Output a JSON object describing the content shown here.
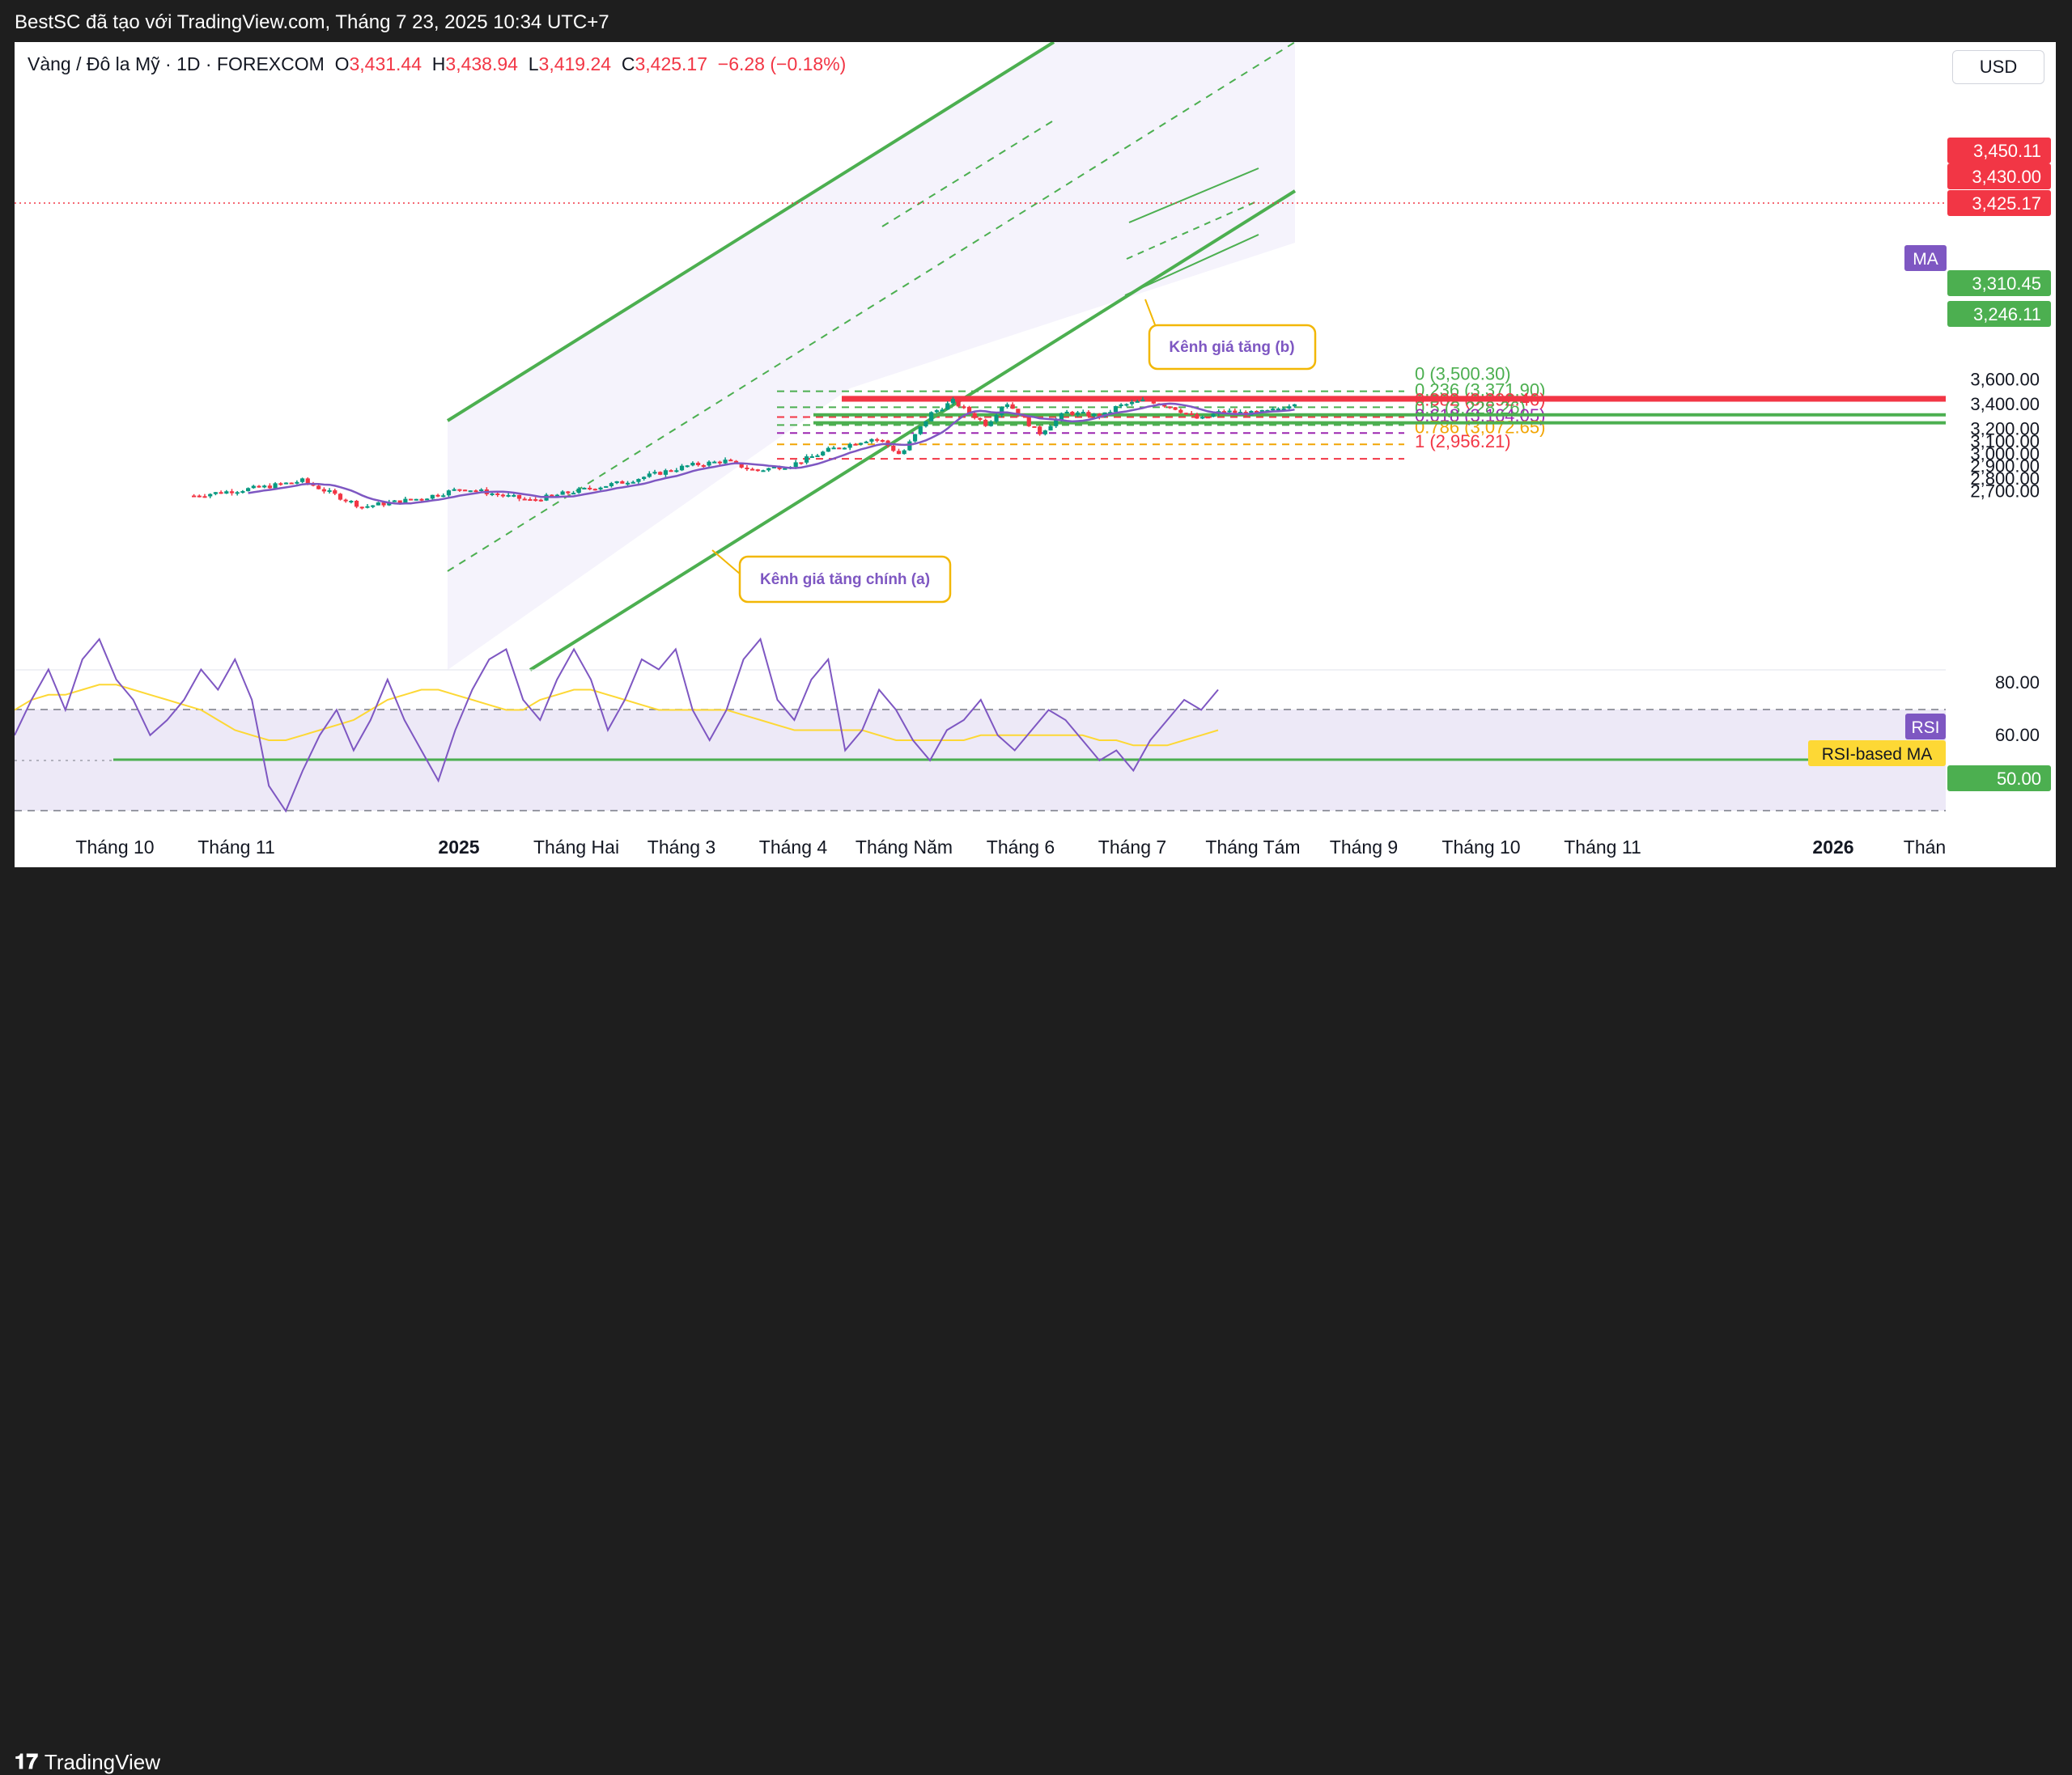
{
  "header": {
    "text": "BestSC đã tạo với TradingView.com, Tháng 7 23, 2025 10:34 UTC+7"
  },
  "footer": {
    "brand": "TradingView",
    "logo_icon": "tradingview-logo-icon"
  },
  "currency_button": "USD",
  "legend": {
    "symbol": "Vàng / Đô la Mỹ · 1D · FOREXCOM",
    "o_label": "O",
    "o_value": "3,431.44",
    "h_label": "H",
    "h_value": "3,438.94",
    "l_label": "L",
    "l_value": "3,419.24",
    "c_label": "C",
    "c_value": "3,425.17",
    "change": "−6.28 (−0.18%)"
  },
  "colors": {
    "up": "#089981",
    "down": "#f23645",
    "channel": "#4caf50",
    "ma": "#7e57c2",
    "rsi_ma": "#fdd835",
    "annotation": "#f2b705",
    "background": "#ffffff",
    "frame": "#1e1e1e"
  },
  "chart_data": [
    {
      "type": "candlestick",
      "symbol": "Vàng / Đô la Mỹ",
      "interval": "1D",
      "ylim": [
        2650,
        3640
      ],
      "y_ticks": [
        "3,600.00",
        "3,400.00",
        "3,200.00",
        "3,100.00",
        "3,000.00",
        "2,900.00",
        "2,800.00",
        "2,700.00"
      ],
      "x_ticks": [
        {
          "label": "Tháng 10",
          "bold": false
        },
        {
          "label": "Tháng 11",
          "bold": false
        },
        {
          "label": "2025",
          "bold": true
        },
        {
          "label": "Tháng Hai",
          "bold": false
        },
        {
          "label": "Tháng 3",
          "bold": false
        },
        {
          "label": "Tháng 4",
          "bold": false
        },
        {
          "label": "Tháng Năm",
          "bold": false
        },
        {
          "label": "Tháng 6",
          "bold": false
        },
        {
          "label": "Tháng 7",
          "bold": false
        },
        {
          "label": "Tháng Tám",
          "bold": false
        },
        {
          "label": "Tháng 9",
          "bold": false
        },
        {
          "label": "Tháng 10",
          "bold": false
        },
        {
          "label": "Tháng 11",
          "bold": false
        },
        {
          "label": "2026",
          "bold": true
        },
        {
          "label": "Thán",
          "bold": false
        }
      ],
      "close_path": [
        [
          "2024-10-01",
          2660
        ],
        [
          "2024-10-20",
          2730
        ],
        [
          "2024-10-30",
          2780
        ],
        [
          "2024-11-05",
          2700
        ],
        [
          "2024-11-15",
          2570
        ],
        [
          "2024-12-01",
          2640
        ],
        [
          "2024-12-12",
          2720
        ],
        [
          "2024-12-30",
          2620
        ],
        [
          "2025-01-10",
          2690
        ],
        [
          "2025-01-24",
          2770
        ],
        [
          "2025-02-10",
          2900
        ],
        [
          "2025-02-20",
          2940
        ],
        [
          "2025-02-28",
          2860
        ],
        [
          "2025-03-10",
          2910
        ],
        [
          "2025-03-20",
          3030
        ],
        [
          "2025-03-31",
          3120
        ],
        [
          "2025-04-03",
          3100
        ],
        [
          "2025-04-08",
          2985
        ],
        [
          "2025-04-16",
          3320
        ],
        [
          "2025-04-22",
          3420
        ],
        [
          "2025-05-01",
          3230
        ],
        [
          "2025-05-06",
          3420
        ],
        [
          "2025-05-15",
          3160
        ],
        [
          "2025-05-22",
          3330
        ],
        [
          "2025-06-01",
          3300
        ],
        [
          "2025-06-05",
          3380
        ],
        [
          "2025-06-13",
          3430
        ],
        [
          "2025-06-20",
          3370
        ],
        [
          "2025-06-27",
          3270
        ],
        [
          "2025-07-03",
          3340
        ],
        [
          "2025-07-10",
          3320
        ],
        [
          "2025-07-16",
          3340
        ],
        [
          "2025-07-21",
          3395
        ],
        [
          "2025-07-23",
          3425
        ]
      ],
      "ma_label": "MA",
      "price_labels": [
        {
          "value": "3,450.11",
          "color": "#f23645"
        },
        {
          "value": "3,430.00",
          "color": "#f23645"
        },
        {
          "value": "3,425.17",
          "color": "#f23645"
        },
        {
          "value": "3,310.45",
          "color": "#4caf50"
        },
        {
          "value": "3,246.11",
          "color": "#4caf50"
        }
      ],
      "fibonacci": [
        {
          "level": "0",
          "price": 3500.3,
          "label": "0 (3,500.30)",
          "color": "#4caf50"
        },
        {
          "level": "0.236",
          "price": 3371.9,
          "label": "0.236 (3,371.90)",
          "color": "#4caf50"
        },
        {
          "level": "0.382",
          "price": 3292.46,
          "label": "0.382 (3,292.46)",
          "color": "#f23645"
        },
        {
          "level": "0.5",
          "price": 3228.26,
          "label": "0.5 (3,228.26)",
          "color": "#4caf50"
        },
        {
          "level": "0.618",
          "price": 3164.05,
          "label": "0.618 (3,164.05)",
          "color": "#9c27b0"
        },
        {
          "level": "0.786",
          "price": 3072.65,
          "label": "0.786 (3,072.65)",
          "color": "#f2a505"
        },
        {
          "level": "1",
          "price": 2956.21,
          "label": "1 (2,956.21)",
          "color": "#f23645"
        }
      ],
      "horizontal_levels": [
        3450.11,
        3430.0,
        3310.45,
        3246.11
      ],
      "annotations": [
        {
          "text": "Kênh giá tăng chính (a)"
        },
        {
          "text": "Kênh giá tăng (b)"
        }
      ]
    },
    {
      "type": "line",
      "name": "RSI",
      "ylim": [
        40,
        80
      ],
      "y_ticks": [
        "80.00",
        "60.00"
      ],
      "level_label": "50.00",
      "rsi_label": "RSI",
      "rsi_ma_label": "RSI-based MA",
      "rsi_points": [
        55,
        62,
        68,
        60,
        70,
        74,
        66,
        62,
        55,
        58,
        62,
        68,
        64,
        70,
        62,
        45,
        40,
        48,
        55,
        60,
        52,
        58,
        66,
        58,
        52,
        46,
        56,
        64,
        70,
        72,
        62,
        58,
        66,
        72,
        66,
        56,
        62,
        70,
        68,
        72,
        60,
        54,
        60,
        70,
        74,
        62,
        58,
        66,
        70,
        52,
        56,
        64,
        60,
        54,
        50,
        56,
        58,
        62,
        55,
        52,
        56,
        60,
        58,
        54,
        50,
        52,
        48,
        54,
        58,
        62,
        60,
        64
      ],
      "rsi_ma_points": [
        60,
        62,
        63,
        63,
        64,
        65,
        65,
        64,
        63,
        62,
        61,
        60,
        58,
        56,
        55,
        54,
        54,
        55,
        56,
        57,
        58,
        60,
        62,
        63,
        64,
        64,
        63,
        62,
        61,
        60,
        60,
        62,
        63,
        64,
        64,
        63,
        62,
        61,
        60,
        60,
        60,
        60,
        60,
        59,
        58,
        57,
        56,
        56,
        56,
        56,
        56,
        55,
        54,
        54,
        54,
        54,
        54,
        55,
        55,
        55,
        55,
        55,
        55,
        55,
        54,
        54,
        53,
        53,
        53,
        54,
        55,
        56
      ]
    }
  ]
}
